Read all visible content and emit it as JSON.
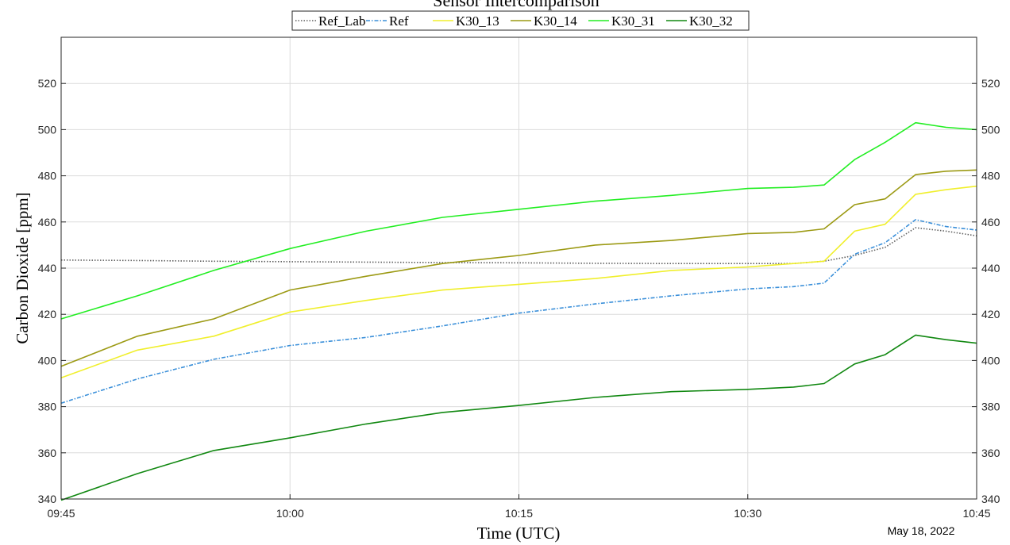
{
  "chart_data": {
    "type": "line",
    "title": "Sensor Intercomparison",
    "xlabel": "Time (UTC)",
    "ylabel": "Carbon Dioxide [ppm]",
    "date_label": "May 18, 2022",
    "x_ticks": [
      "09:45",
      "10:00",
      "10:15",
      "10:30",
      "10:45"
    ],
    "x_tick_minutes": [
      0,
      15,
      30,
      45,
      60
    ],
    "xlim": [
      0,
      60
    ],
    "ylim": [
      340,
      540
    ],
    "y_ticks": [
      340,
      360,
      380,
      400,
      420,
      440,
      460,
      480,
      500,
      520
    ],
    "grid": true,
    "legend_position": "top-center",
    "x": [
      0,
      5,
      10,
      15,
      20,
      25,
      30,
      35,
      40,
      45,
      48,
      50,
      52,
      54,
      56,
      58,
      60
    ],
    "series": [
      {
        "name": "Ref_Lab",
        "color": "#606060",
        "dash": "1.5,2",
        "width": 1.6,
        "values": [
          443.5,
          443.3,
          443,
          442.8,
          442.6,
          442.4,
          442.3,
          442.1,
          442,
          442,
          442,
          443,
          445.5,
          449,
          457.5,
          456,
          454
        ]
      },
      {
        "name": "Ref",
        "color": "#3a8fd9",
        "dash": "5,2,1.5,2",
        "width": 1.6,
        "values": [
          381.5,
          392,
          400.5,
          406.5,
          410,
          415,
          420.5,
          424.5,
          428,
          431,
          432,
          433.5,
          446,
          451,
          461,
          458,
          456.5
        ]
      },
      {
        "name": "K30_13",
        "color": "#f0ef2c",
        "dash": "",
        "width": 1.6,
        "values": [
          392.5,
          404.5,
          410.5,
          421,
          426,
          430.5,
          433,
          435.5,
          439,
          440.5,
          442,
          443,
          456,
          459,
          472,
          474,
          475.5
        ]
      },
      {
        "name": "K30_14",
        "color": "#9c9a14",
        "dash": "",
        "width": 1.6,
        "values": [
          397.5,
          410.5,
          418,
          430.5,
          436.5,
          442,
          445.5,
          450,
          452,
          455,
          455.5,
          457,
          467.5,
          470,
          480.5,
          482,
          482.5
        ]
      },
      {
        "name": "K30_31",
        "color": "#22ee22",
        "dash": "",
        "width": 1.6,
        "values": [
          418,
          428,
          439,
          448.5,
          456,
          462,
          465.5,
          469,
          471.5,
          474.5,
          475,
          476,
          487,
          494.5,
          503,
          501,
          500
        ]
      },
      {
        "name": "K30_32",
        "color": "#118811",
        "dash": "",
        "width": 1.6,
        "values": [
          339.5,
          351,
          361,
          366.5,
          372.5,
          377.5,
          380.5,
          384,
          386.5,
          387.5,
          388.5,
          390,
          398.5,
          402.5,
          411,
          409,
          407.5
        ]
      }
    ]
  }
}
